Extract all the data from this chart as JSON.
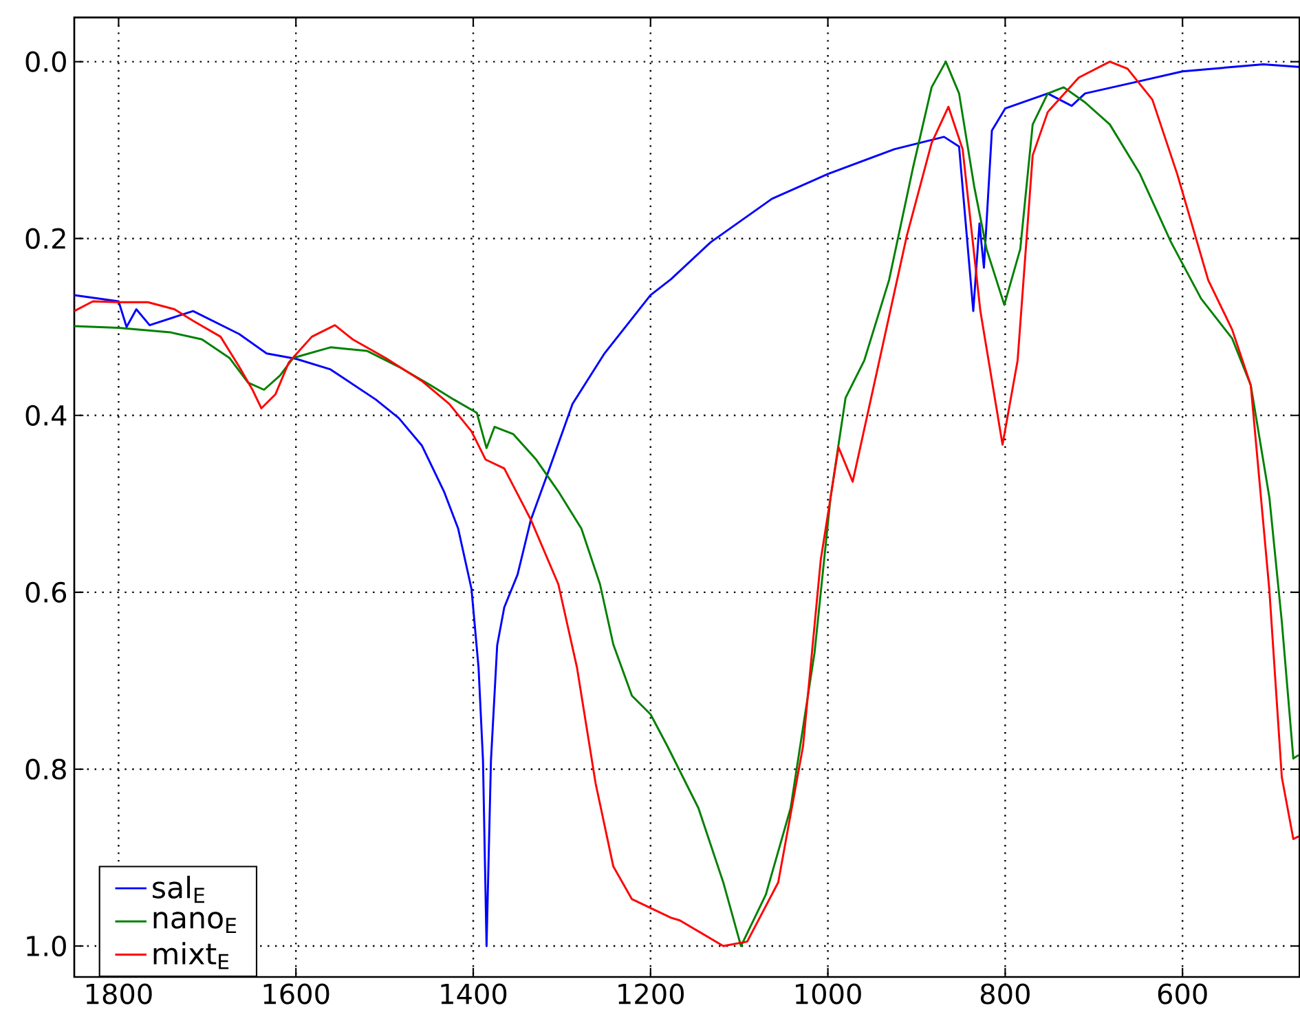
{
  "chart_data": {
    "type": "line",
    "xlim": [
      1850,
      468
    ],
    "ylim": [
      1.035,
      -0.05
    ],
    "xticks": [
      1800,
      1600,
      1400,
      1200,
      1000,
      800,
      600
    ],
    "yticks": [
      {
        "value": 0,
        "label": "0.0"
      },
      {
        "value": 0.2,
        "label": "0.2"
      },
      {
        "value": 0.4,
        "label": "0.4"
      },
      {
        "value": 0.6,
        "label": "0.6"
      },
      {
        "value": 0.8,
        "label": "0.8"
      },
      {
        "value": 1,
        "label": "1.0"
      }
    ],
    "grid": true,
    "legend": "bottom left",
    "line_style": "solid",
    "marker": "none",
    "series": [
      {
        "name": "sal$_{E}$",
        "color": "#0000ff",
        "x": [
          1850,
          1800,
          1791,
          1780,
          1765,
          1716,
          1664,
          1633,
          1600,
          1561,
          1510,
          1484,
          1458,
          1433,
          1417,
          1402,
          1394,
          1389,
          1385,
          1380,
          1373,
          1365,
          1350,
          1335,
          1314,
          1288,
          1252,
          1200,
          1177,
          1132,
          1063,
          1000,
          925,
          869,
          852,
          836,
          829,
          824,
          815,
          800,
          752,
          725,
          710,
          648,
          600,
          509,
          469
        ],
        "values": [
          0.264,
          0.271,
          0.3,
          0.28,
          0.298,
          0.282,
          0.308,
          0.33,
          0.336,
          0.348,
          0.382,
          0.403,
          0.434,
          0.486,
          0.528,
          0.596,
          0.685,
          0.79,
          1.0,
          0.79,
          0.66,
          0.617,
          0.58,
          0.518,
          0.46,
          0.387,
          0.33,
          0.264,
          0.246,
          0.204,
          0.155,
          0.127,
          0.099,
          0.085,
          0.096,
          0.282,
          0.183,
          0.233,
          0.078,
          0.053,
          0.036,
          0.05,
          0.036,
          0.022,
          0.011,
          0.003,
          0.006
        ]
      },
      {
        "name": "nano$_{E}$",
        "color": "#008000",
        "x": [
          1850,
          1800,
          1742,
          1706,
          1675,
          1654,
          1636,
          1618,
          1603,
          1561,
          1520,
          1484,
          1448,
          1422,
          1396,
          1385,
          1376,
          1355,
          1329,
          1304,
          1278,
          1257,
          1242,
          1221,
          1200,
          1181,
          1146,
          1118,
          1098,
          1070,
          1042,
          1015,
          997,
          980,
          959,
          931,
          904,
          883,
          867,
          852,
          835,
          821,
          801,
          783,
          769,
          752,
          734,
          710,
          682,
          648,
          613,
          579,
          544,
          523,
          502,
          488,
          475,
          469
        ],
        "values": [
          0.299,
          0.301,
          0.306,
          0.314,
          0.335,
          0.363,
          0.371,
          0.355,
          0.335,
          0.323,
          0.327,
          0.345,
          0.366,
          0.382,
          0.397,
          0.437,
          0.413,
          0.421,
          0.45,
          0.486,
          0.528,
          0.591,
          0.659,
          0.717,
          0.738,
          0.774,
          0.844,
          0.928,
          1.0,
          0.942,
          0.844,
          0.668,
          0.493,
          0.38,
          0.338,
          0.247,
          0.12,
          0.029,
          0.0,
          0.036,
          0.141,
          0.212,
          0.275,
          0.212,
          0.071,
          0.036,
          0.029,
          0.046,
          0.071,
          0.127,
          0.204,
          0.268,
          0.313,
          0.366,
          0.493,
          0.633,
          0.788,
          0.784
        ]
      },
      {
        "name": "mixt$_{E}$",
        "color": "#ff0000",
        "x": [
          1850,
          1829,
          1800,
          1767,
          1737,
          1716,
          1685,
          1664,
          1649,
          1639,
          1623,
          1608,
          1582,
          1556,
          1536,
          1499,
          1458,
          1427,
          1402,
          1386,
          1365,
          1335,
          1304,
          1283,
          1262,
          1242,
          1221,
          1177,
          1167,
          1118,
          1091,
          1056,
          1028,
          1008,
          988,
          972,
          945,
          911,
          883,
          864,
          848,
          828,
          803,
          786,
          769,
          752,
          717,
          682,
          662,
          634,
          606,
          571,
          544,
          523,
          502,
          488,
          475,
          469
        ],
        "values": [
          0.282,
          0.271,
          0.272,
          0.272,
          0.28,
          0.293,
          0.311,
          0.345,
          0.371,
          0.392,
          0.376,
          0.34,
          0.311,
          0.298,
          0.314,
          0.335,
          0.361,
          0.387,
          0.418,
          0.45,
          0.46,
          0.518,
          0.591,
          0.685,
          0.816,
          0.91,
          0.947,
          0.968,
          0.971,
          1.0,
          0.995,
          0.928,
          0.774,
          0.563,
          0.436,
          0.475,
          0.352,
          0.197,
          0.092,
          0.051,
          0.099,
          0.282,
          0.433,
          0.338,
          0.106,
          0.057,
          0.018,
          0.0,
          0.008,
          0.043,
          0.127,
          0.247,
          0.303,
          0.366,
          0.598,
          0.809,
          0.879,
          0.876
        ]
      }
    ]
  }
}
